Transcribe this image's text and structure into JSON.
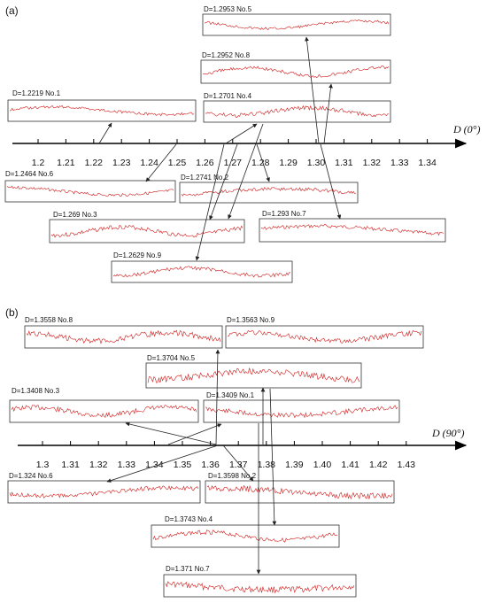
{
  "colors": {
    "profile": "#d01818",
    "axis": "#000000",
    "arrow": "#222222",
    "box": "#333333",
    "grid": "#f3c6c6"
  },
  "panel_a": {
    "label": "(a)",
    "axis_label": "D (0°)",
    "ticks": [
      "1.2",
      "1.21",
      "1.22",
      "1.23",
      "1.24",
      "1.25",
      "1.26",
      "1.27",
      "1.28",
      "1.29",
      "1.30",
      "1.31",
      "1.32",
      "1.33",
      "1.34"
    ],
    "profiles": [
      {
        "label": "D=1.2953  No.5",
        "D": 1.2953
      },
      {
        "label": "D=1.2952  No.8",
        "D": 1.2952
      },
      {
        "label": "D=1.2219  No.1",
        "D": 1.2219
      },
      {
        "label": "D=1.2701  No.4",
        "D": 1.2701
      },
      {
        "label": "D=1.2464  No.6",
        "D": 1.2464
      },
      {
        "label": "D=1.2741  No.2",
        "D": 1.2741
      },
      {
        "label": "D=1.269  No.3",
        "D": 1.269
      },
      {
        "label": "D=1.293  No.7",
        "D": 1.293
      },
      {
        "label": "D=1.2629  No.9",
        "D": 1.2629
      }
    ]
  },
  "panel_b": {
    "label": "(b)",
    "axis_label": "D (90°)",
    "ticks": [
      "1.3",
      "1.31",
      "1.32",
      "1.33",
      "1.34",
      "1.35",
      "1.36",
      "1.37",
      "1.38",
      "1.39",
      "1.40",
      "1.41",
      "1.42",
      "1.43"
    ],
    "profiles": [
      {
        "label": "D=1.3558  No.8",
        "D": 1.3558
      },
      {
        "label": "D=1.3563  No.9",
        "D": 1.3563
      },
      {
        "label": "D=1.3704  No.5",
        "D": 1.3704
      },
      {
        "label": "D=1.3408  No.3",
        "D": 1.3408
      },
      {
        "label": "D=1.3409  No.1",
        "D": 1.3409
      },
      {
        "label": "D=1.324  No.6",
        "D": 1.324
      },
      {
        "label": "D=1.3598  No.2",
        "D": 1.3598
      },
      {
        "label": "D=1.3743  No.4",
        "D": 1.3743
      },
      {
        "label": "D=1.371  No.7",
        "D": 1.371
      }
    ]
  }
}
